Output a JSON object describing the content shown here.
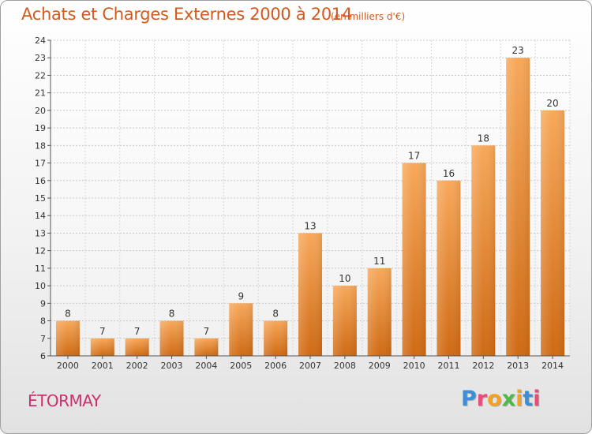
{
  "chart_data": {
    "type": "bar",
    "title": "Achats et Charges Externes 2000 à 2014",
    "subtitle": "(en milliers d'€)",
    "categories": [
      "2000",
      "2001",
      "2002",
      "2003",
      "2004",
      "2005",
      "2006",
      "2007",
      "2008",
      "2009",
      "2010",
      "2011",
      "2012",
      "2013",
      "2014"
    ],
    "values": [
      8,
      7,
      7,
      8,
      7,
      9,
      8,
      13,
      10,
      11,
      17,
      16,
      18,
      23,
      20
    ],
    "ylim": [
      6,
      24
    ],
    "yticks": [
      "6",
      "7",
      "8",
      "9",
      "10",
      "11",
      "12",
      "13",
      "14",
      "15",
      "16",
      "17",
      "18",
      "19",
      "20",
      "21",
      "22",
      "23",
      "24"
    ],
    "data_labels": [
      "8",
      "7",
      "7",
      "8",
      "7",
      "9",
      "8",
      "13",
      "10",
      "11",
      "17",
      "16",
      "18",
      "23",
      "20"
    ],
    "grid": true,
    "legend": "none",
    "bar_color": "#f29a3e",
    "commune": "ÉTORMAY"
  },
  "logo": {
    "letters": [
      "P",
      "r",
      "o",
      "x",
      "i",
      "t",
      "i"
    ],
    "colors": [
      "#3a8fd6",
      "#e84d7a",
      "#f4a21d",
      "#4fb848",
      "#f4a21d",
      "#3a8fd6",
      "#e84d7a"
    ]
  }
}
